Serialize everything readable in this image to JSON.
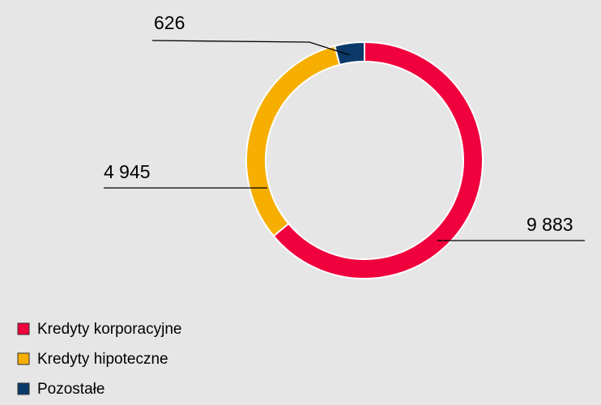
{
  "chart_data": {
    "type": "donut",
    "categories": [
      "Kredyty korporacyjne",
      "Kredyty hipoteczne",
      "Pozostałe"
    ],
    "values": [
      9883,
      4945,
      626
    ],
    "value_labels": [
      "9 883",
      "4 945",
      "626"
    ],
    "colors": [
      "#f0003c",
      "#f6ae00",
      "#0b3a6a"
    ]
  }
}
